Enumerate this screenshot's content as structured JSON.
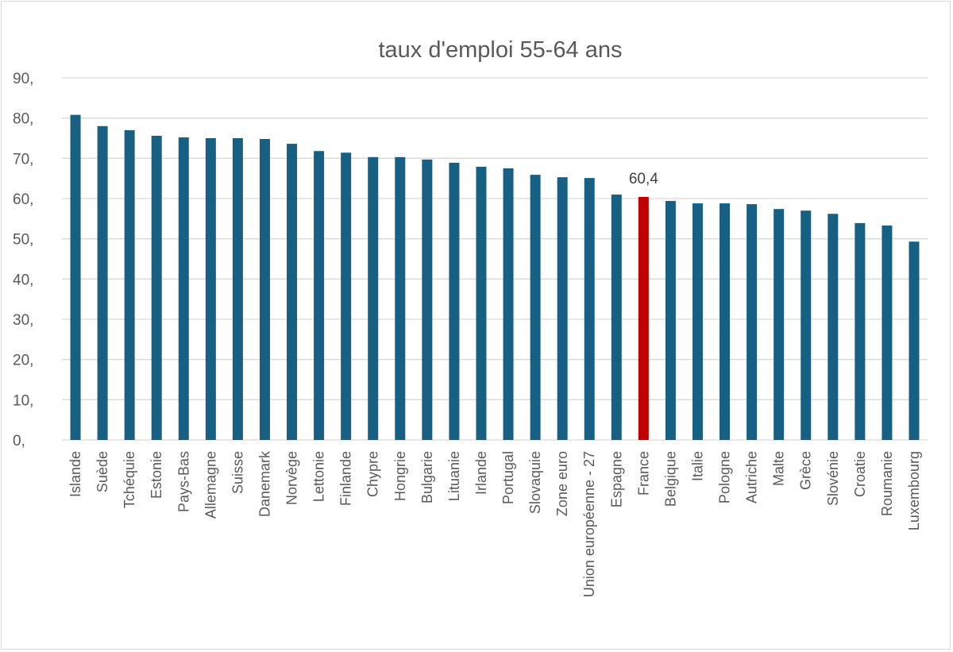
{
  "chart_data": {
    "type": "bar",
    "title": "taux d'emploi 55-64 ans",
    "xlabel": "",
    "ylabel": "",
    "ylim": [
      0,
      90
    ],
    "yticks": [
      0,
      10,
      20,
      30,
      40,
      50,
      60,
      70,
      80,
      90
    ],
    "ytick_labels": [
      "0,",
      "10,",
      "20,",
      "30,",
      "40,",
      "50,",
      "60,",
      "70,",
      "80,",
      "90,"
    ],
    "grid": true,
    "categories": [
      "Islande",
      "Suède",
      "Tchéquie",
      "Estonie",
      "Pays-Bas",
      "Allemagne",
      "Suisse",
      "Danemark",
      "Norvège",
      "Lettonie",
      "Finlande",
      "Chypre",
      "Hongrie",
      "Bulgarie",
      "Lituanie",
      "Irlande",
      "Portugal",
      "Slovaquie",
      "Zone euro",
      "Union européenne - 27",
      "Espagne",
      "France",
      "Belgique",
      "Italie",
      "Pologne",
      "Autriche",
      "Malte",
      "Grèce",
      "Slovénie",
      "Croatie",
      "Roumanie",
      "Luxembourg"
    ],
    "values": [
      80.8,
      78.0,
      77.0,
      75.6,
      75.2,
      75.0,
      75.0,
      74.8,
      73.6,
      71.8,
      71.4,
      70.3,
      70.3,
      69.7,
      68.9,
      67.9,
      67.5,
      65.9,
      65.3,
      65.1,
      61.0,
      60.4,
      59.4,
      58.8,
      58.8,
      58.6,
      57.4,
      57.0,
      56.2,
      53.9,
      53.3,
      49.3
    ],
    "colors": {
      "default": "#176083",
      "highlight": "#c00000",
      "grid": "#d9d9d9",
      "text": "#595959"
    },
    "highlight_category": "France",
    "annotations": [
      {
        "category": "France",
        "text": "60,4"
      }
    ]
  }
}
